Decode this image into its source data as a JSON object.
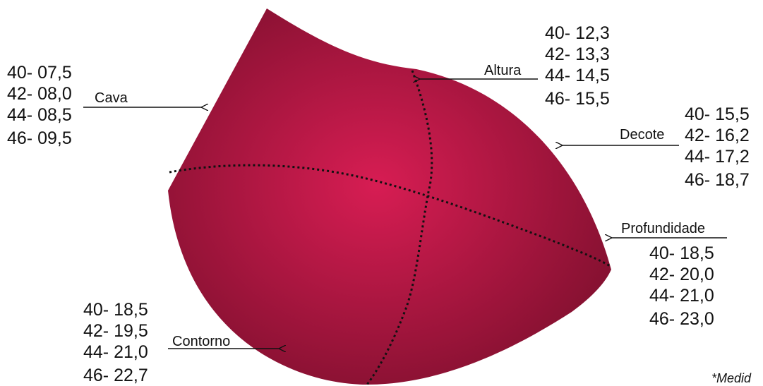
{
  "colors": {
    "cup_light": "#d71d53",
    "cup_dark": "#7a0f2c",
    "seam": "#111111",
    "text": "#111111"
  },
  "labels": {
    "cava": {
      "title": "Cava",
      "values": [
        "40- 07,5",
        "42- 08,0",
        "44- 08,5",
        "46- 09,5"
      ]
    },
    "altura": {
      "title": "Altura",
      "values": [
        "40- 12,3",
        "42- 13,3",
        "44- 14,5",
        "46- 15,5"
      ]
    },
    "decote": {
      "title": "Decote",
      "values": [
        "40- 15,5",
        "42- 16,2",
        "44- 17,2",
        "46- 18,7"
      ]
    },
    "profundidade": {
      "title": "Profundidade",
      "values": [
        "40- 18,5",
        "42- 20,0",
        "44- 21,0",
        "46- 23,0"
      ]
    },
    "contorno": {
      "title": "Contorno",
      "values": [
        "40- 18,5",
        "42- 19,5",
        "44- 21,0",
        "46- 22,7"
      ]
    }
  },
  "footnote": "*Medid"
}
